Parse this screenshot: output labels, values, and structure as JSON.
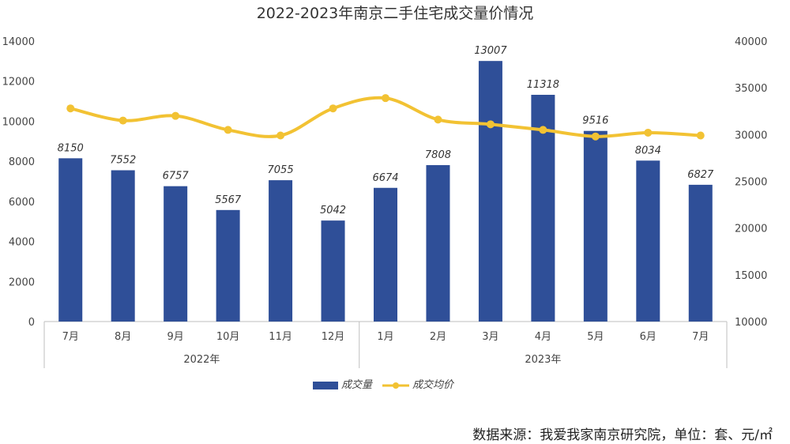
{
  "chart_data": {
    "type": "bar+line",
    "title": "2022-2023年南京二手住宅成交量价情况",
    "categories": [
      "7月",
      "8月",
      "9月",
      "10月",
      "11月",
      "12月",
      "1月",
      "2月",
      "3月",
      "4月",
      "5月",
      "6月",
      "7月"
    ],
    "groups": [
      {
        "label": "2022年",
        "count": 6
      },
      {
        "label": "2023年",
        "count": 7
      }
    ],
    "series": [
      {
        "name": "成交量",
        "type": "bar",
        "axis": "left",
        "color": "#2f4f98",
        "values": [
          8150,
          7552,
          6757,
          5567,
          7055,
          5042,
          6674,
          7808,
          13007,
          11318,
          9516,
          8034,
          6827
        ]
      },
      {
        "name": "成交均价",
        "type": "line",
        "axis": "right",
        "color": "#f2c233",
        "values": [
          32800,
          31500,
          32000,
          30500,
          29900,
          32800,
          33900,
          31600,
          31100,
          30500,
          29800,
          30200,
          29900
        ]
      }
    ],
    "y_left": {
      "min": 0,
      "max": 14000,
      "ticks": [
        0,
        2000,
        4000,
        6000,
        8000,
        10000,
        12000,
        14000
      ]
    },
    "y_right": {
      "min": 10000,
      "max": 40000,
      "ticks": [
        10000,
        15000,
        20000,
        25000,
        30000,
        35000,
        40000
      ]
    },
    "grid": false,
    "legend_position": "bottom"
  },
  "source_note": "数据来源：我爱我家南京研究院，单位：套、元/㎡"
}
